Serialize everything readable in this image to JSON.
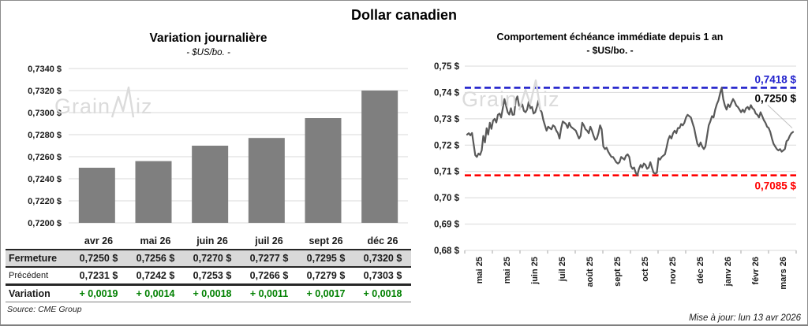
{
  "page": {
    "title": "Dollar canadien",
    "watermark": "GrainWiz",
    "source": "Source: CME Group",
    "updated": "Mise à jour: lun 13 avr 2026"
  },
  "colors": {
    "bar": "#7f7f7f",
    "line": "#595959",
    "resistance_blue": "#2020cc",
    "support_red": "#ff0000",
    "variation_green": "#008000",
    "grid": "#d9d9d9",
    "table_header_bg": "#d9d9d9",
    "watermark_gray": "#dbdbdb",
    "leader_gray": "#bfbfbf"
  },
  "chart_data": [
    {
      "type": "bar",
      "title": "Variation journalière",
      "subtitle": "- $US/bo. -",
      "categories": [
        "avr 26",
        "mai 26",
        "juin 26",
        "juil 26",
        "sept 26",
        "déc 26"
      ],
      "values": [
        0.725,
        0.7256,
        0.727,
        0.7277,
        0.7295,
        0.732
      ],
      "ylim": [
        0.72,
        0.734
      ],
      "ytick_labels": [
        "0,7340 $",
        "0,7320 $",
        "0,7300 $",
        "0,7280 $",
        "0,7260 $",
        "0,7240 $",
        "0,7220 $",
        "0,7200 $"
      ],
      "grid": true,
      "bar_color": "#7f7f7f"
    },
    {
      "type": "line",
      "title": "Comportement échéance immédiate depuis 1 an",
      "subtitle": "- $US/bo. -",
      "x_labels": [
        "mai 25",
        "mai 25",
        "juin 25",
        "juil 25",
        "août 25",
        "sept 25",
        "oct 25",
        "nov 25",
        "déc 25",
        "janv 26",
        "févr 26",
        "mars 26"
      ],
      "ylim": [
        0.68,
        0.75
      ],
      "ytick_labels": [
        "0,75 $",
        "0,74 $",
        "0,73 $",
        "0,72 $",
        "0,71 $",
        "0,70 $",
        "0,69 $",
        "0,68 $"
      ],
      "grid": true,
      "line_color": "#595959",
      "values": [
        0.724,
        0.7245,
        0.7237,
        0.7246,
        0.7205,
        0.7162,
        0.7155,
        0.7168,
        0.7163,
        0.718,
        0.7235,
        0.721,
        0.7264,
        0.724,
        0.7285,
        0.7262,
        0.7293,
        0.73,
        0.7286,
        0.7315,
        0.732,
        0.7305,
        0.734,
        0.7375,
        0.735,
        0.7325,
        0.7316,
        0.734,
        0.7315,
        0.7316,
        0.737,
        0.7385,
        0.735,
        0.7345,
        0.7355,
        0.733,
        0.7325,
        0.7335,
        0.7365,
        0.734,
        0.7345,
        0.732,
        0.7325,
        0.7345,
        0.737,
        0.7335,
        0.7325,
        0.7295,
        0.7275,
        0.7255,
        0.727,
        0.7265,
        0.726,
        0.7275,
        0.727,
        0.7255,
        0.7245,
        0.7225,
        0.7265,
        0.729,
        0.7285,
        0.728,
        0.7265,
        0.7285,
        0.727,
        0.7265,
        0.726,
        0.7255,
        0.724,
        0.7225,
        0.7235,
        0.7285,
        0.7275,
        0.726,
        0.7255,
        0.7245,
        0.727,
        0.7255,
        0.7235,
        0.722,
        0.7225,
        0.7245,
        0.7275,
        0.726,
        0.7195,
        0.7185,
        0.719,
        0.7175,
        0.7165,
        0.7155,
        0.7155,
        0.7145,
        0.7135,
        0.713,
        0.7135,
        0.7155,
        0.715,
        0.7145,
        0.716,
        0.7165,
        0.7155,
        0.712,
        0.711,
        0.7115,
        0.7095,
        0.7085,
        0.711,
        0.7125,
        0.7115,
        0.713,
        0.7125,
        0.711,
        0.7115,
        0.7135,
        0.7115,
        0.7095,
        0.7092,
        0.7095,
        0.715,
        0.7145,
        0.7155,
        0.716,
        0.7165,
        0.719,
        0.722,
        0.7235,
        0.7225,
        0.7245,
        0.7255,
        0.7245,
        0.7265,
        0.7265,
        0.728,
        0.7275,
        0.7285,
        0.7305,
        0.7315,
        0.731,
        0.7305,
        0.7285,
        0.7265,
        0.7235,
        0.7205,
        0.7195,
        0.721,
        0.7195,
        0.7185,
        0.7195,
        0.7235,
        0.7275,
        0.729,
        0.731,
        0.7305,
        0.7335,
        0.7355,
        0.737,
        0.7395,
        0.7418,
        0.7375,
        0.735,
        0.7335,
        0.7355,
        0.7345,
        0.736,
        0.7375,
        0.7365,
        0.735,
        0.7345,
        0.7335,
        0.7325,
        0.7335,
        0.7325,
        0.734,
        0.7345,
        0.7335,
        0.7352,
        0.734,
        0.7335,
        0.732,
        0.7315,
        0.7305,
        0.7325,
        0.731,
        0.7295,
        0.7285,
        0.727,
        0.7265,
        0.725,
        0.7225,
        0.7205,
        0.7195,
        0.7185,
        0.718,
        0.7185,
        0.7175,
        0.718,
        0.7185,
        0.7215,
        0.722,
        0.7235,
        0.7245,
        0.725
      ],
      "annotations": {
        "resistance": {
          "value": 0.7418,
          "label": "0,7418 $",
          "color": "#2020cc",
          "style": "dashed"
        },
        "support": {
          "value": 0.7085,
          "label": "0,7085 $",
          "color": "#ff0000",
          "style": "dashed"
        },
        "last": {
          "value": 0.725,
          "label": "0,7250 $",
          "color": "#000000"
        }
      }
    }
  ],
  "table": {
    "col_headers": [
      "avr 26",
      "mai 26",
      "juin 26",
      "juil 26",
      "sept 26",
      "déc 26"
    ],
    "rows": [
      {
        "style": "close",
        "label": "Fermeture",
        "values": [
          "0,7250 $",
          "0,7256 $",
          "0,7270 $",
          "0,7277 $",
          "0,7295 $",
          "0,7320 $"
        ]
      },
      {
        "style": "previous",
        "label": "Précédent",
        "values": [
          "0,7231 $",
          "0,7242 $",
          "0,7253 $",
          "0,7266 $",
          "0,7279 $",
          "0,7303 $"
        ]
      },
      {
        "style": "variation",
        "label": "Variation",
        "values": [
          "+ 0,0019",
          "+ 0,0014",
          "+ 0,0018",
          "+ 0,0011",
          "+ 0,0017",
          "+ 0,0018"
        ]
      }
    ]
  }
}
